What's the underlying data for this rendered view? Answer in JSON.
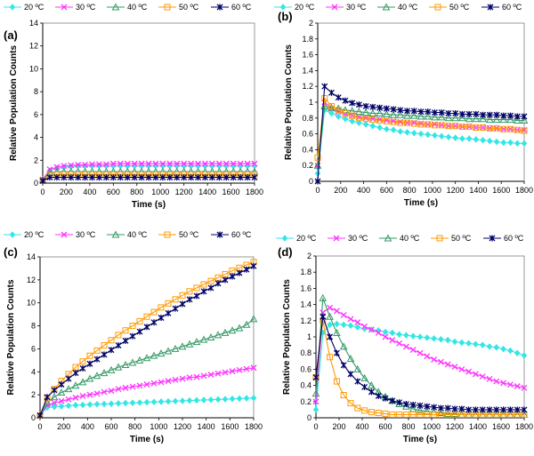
{
  "figure": {
    "series_names": [
      "20 ºC",
      "30 ºC",
      "40 ºC",
      "50 ºC",
      "60 ºC"
    ],
    "series_colors": [
      "#33e6e6",
      "#ff33ff",
      "#339966",
      "#ff9900",
      "#000066"
    ],
    "series_markers": [
      "diamond",
      "cross",
      "triangle",
      "square",
      "star"
    ]
  },
  "chart_data": [
    {
      "panel": "(a)",
      "type": "line",
      "xlabel": "Time (s)",
      "ylabel": "Relative Population Counts",
      "xlim": [
        0,
        1800
      ],
      "ylim": [
        0,
        14
      ],
      "xticks": [
        "0",
        "200",
        "400",
        "600",
        "800",
        "1000",
        "1200",
        "1400",
        "1600",
        "1800"
      ],
      "yticks": [
        "0",
        "2",
        "4",
        "6",
        "8",
        "10",
        "12",
        "14"
      ],
      "legend": "top",
      "x": [
        0,
        60,
        120,
        180,
        240,
        300,
        360,
        420,
        480,
        540,
        600,
        660,
        720,
        780,
        840,
        900,
        960,
        1020,
        1080,
        1140,
        1200,
        1260,
        1320,
        1380,
        1440,
        1500,
        1560,
        1620,
        1680,
        1740,
        1800
      ],
      "series": [
        {
          "name": "20 ºC",
          "values": [
            0.3,
            1.1,
            1.3,
            1.4,
            1.45,
            1.5,
            1.5,
            1.5,
            1.5,
            1.5,
            1.5,
            1.5,
            1.5,
            1.5,
            1.5,
            1.5,
            1.5,
            1.5,
            1.5,
            1.5,
            1.5,
            1.5,
            1.5,
            1.5,
            1.5,
            1.5,
            1.5,
            1.5,
            1.5,
            1.5,
            1.5
          ]
        },
        {
          "name": "30 ºC",
          "values": [
            0.3,
            1.2,
            1.4,
            1.5,
            1.55,
            1.6,
            1.6,
            1.65,
            1.65,
            1.65,
            1.7,
            1.7,
            1.7,
            1.7,
            1.7,
            1.7,
            1.7,
            1.7,
            1.7,
            1.7,
            1.7,
            1.7,
            1.7,
            1.7,
            1.7,
            1.7,
            1.7,
            1.7,
            1.7,
            1.7,
            1.7
          ]
        },
        {
          "name": "40 ºC",
          "values": [
            0.3,
            0.9,
            1.0,
            1.0,
            1.0,
            1.0,
            1.0,
            1.0,
            1.0,
            1.0,
            1.0,
            1.0,
            1.0,
            1.0,
            1.0,
            1.0,
            1.0,
            1.0,
            1.0,
            1.0,
            1.0,
            1.0,
            1.0,
            1.0,
            1.0,
            1.0,
            1.0,
            1.0,
            1.0,
            1.0,
            1.0
          ]
        },
        {
          "name": "50 ºC",
          "values": [
            0.2,
            0.7,
            0.75,
            0.75,
            0.75,
            0.75,
            0.75,
            0.75,
            0.75,
            0.75,
            0.75,
            0.75,
            0.75,
            0.75,
            0.75,
            0.75,
            0.75,
            0.75,
            0.75,
            0.75,
            0.75,
            0.75,
            0.75,
            0.75,
            0.75,
            0.75,
            0.75,
            0.75,
            0.75,
            0.75,
            0.75
          ]
        },
        {
          "name": "60 ºC",
          "values": [
            0.2,
            0.5,
            0.5,
            0.5,
            0.5,
            0.5,
            0.5,
            0.5,
            0.5,
            0.5,
            0.5,
            0.5,
            0.5,
            0.5,
            0.5,
            0.5,
            0.5,
            0.5,
            0.5,
            0.5,
            0.5,
            0.5,
            0.5,
            0.5,
            0.5,
            0.5,
            0.5,
            0.5,
            0.5,
            0.5,
            0.5
          ]
        }
      ]
    },
    {
      "panel": "(b)",
      "type": "line",
      "xlabel": "Time (s)",
      "ylabel": "Relative Population Counts",
      "xlim": [
        0,
        1800
      ],
      "ylim": [
        0,
        2
      ],
      "xticks": [
        "0",
        "200",
        "400",
        "600",
        "800",
        "1000",
        "1200",
        "1400",
        "1600",
        "1800"
      ],
      "yticks": [
        "0",
        "0.2",
        "0.4",
        "0.6",
        "0.8",
        "1",
        "1.2",
        "1.4",
        "1.6",
        "1.8",
        "2"
      ],
      "legend": "top",
      "x": [
        0,
        60,
        120,
        180,
        240,
        300,
        360,
        420,
        480,
        540,
        600,
        660,
        720,
        780,
        840,
        900,
        960,
        1020,
        1080,
        1140,
        1200,
        1260,
        1320,
        1380,
        1440,
        1500,
        1560,
        1620,
        1680,
        1740,
        1800
      ],
      "series": [
        {
          "name": "20 ºC",
          "values": [
            0.1,
            0.9,
            0.86,
            0.82,
            0.79,
            0.76,
            0.74,
            0.72,
            0.7,
            0.68,
            0.66,
            0.65,
            0.63,
            0.62,
            0.61,
            0.6,
            0.59,
            0.58,
            0.57,
            0.56,
            0.55,
            0.54,
            0.54,
            0.53,
            0.52,
            0.51,
            0.5,
            0.49,
            0.49,
            0.48,
            0.48
          ]
        },
        {
          "name": "30 ºC",
          "values": [
            0.2,
            1.0,
            0.92,
            0.88,
            0.85,
            0.83,
            0.81,
            0.8,
            0.79,
            0.78,
            0.77,
            0.76,
            0.75,
            0.74,
            0.74,
            0.73,
            0.72,
            0.72,
            0.71,
            0.7,
            0.7,
            0.69,
            0.69,
            0.68,
            0.68,
            0.67,
            0.67,
            0.66,
            0.66,
            0.65,
            0.65
          ]
        },
        {
          "name": "40 ºC",
          "values": [
            0.2,
            0.95,
            0.93,
            0.92,
            0.9,
            0.89,
            0.88,
            0.87,
            0.86,
            0.86,
            0.85,
            0.84,
            0.84,
            0.83,
            0.83,
            0.82,
            0.82,
            0.81,
            0.81,
            0.8,
            0.8,
            0.8,
            0.79,
            0.79,
            0.79,
            0.78,
            0.78,
            0.78,
            0.78,
            0.77,
            0.77
          ]
        },
        {
          "name": "50 ºC",
          "values": [
            0.3,
            1.05,
            0.95,
            0.9,
            0.86,
            0.83,
            0.8,
            0.79,
            0.78,
            0.77,
            0.76,
            0.75,
            0.74,
            0.74,
            0.73,
            0.72,
            0.72,
            0.71,
            0.71,
            0.7,
            0.7,
            0.69,
            0.69,
            0.68,
            0.68,
            0.67,
            0.67,
            0.66,
            0.66,
            0.65,
            0.64
          ]
        },
        {
          "name": "60 ºC",
          "values": [
            0.0,
            1.2,
            1.12,
            1.06,
            1.02,
            0.99,
            0.97,
            0.95,
            0.94,
            0.93,
            0.92,
            0.91,
            0.9,
            0.89,
            0.89,
            0.88,
            0.88,
            0.87,
            0.87,
            0.86,
            0.86,
            0.85,
            0.85,
            0.85,
            0.84,
            0.84,
            0.84,
            0.83,
            0.83,
            0.82,
            0.82
          ]
        }
      ]
    },
    {
      "panel": "(c)",
      "type": "line",
      "xlabel": "Time (s)",
      "ylabel": "Relative Population Counts",
      "xlim": [
        0,
        1800
      ],
      "ylim": [
        0,
        14
      ],
      "xticks": [
        "0",
        "200",
        "400",
        "600",
        "800",
        "1000",
        "1200",
        "1400",
        "1600",
        "1800"
      ],
      "yticks": [
        "0",
        "2",
        "4",
        "6",
        "8",
        "10",
        "12",
        "14"
      ],
      "legend": "top",
      "x": [
        0,
        60,
        120,
        180,
        240,
        300,
        360,
        420,
        480,
        540,
        600,
        660,
        720,
        780,
        840,
        900,
        960,
        1020,
        1080,
        1140,
        1200,
        1260,
        1320,
        1380,
        1440,
        1500,
        1560,
        1620,
        1680,
        1740,
        1800
      ],
      "series": [
        {
          "name": "20 ºC",
          "values": [
            0.2,
            0.9,
            0.95,
            1.0,
            1.05,
            1.1,
            1.12,
            1.15,
            1.18,
            1.2,
            1.22,
            1.25,
            1.28,
            1.3,
            1.32,
            1.35,
            1.38,
            1.4,
            1.42,
            1.45,
            1.47,
            1.5,
            1.52,
            1.55,
            1.57,
            1.6,
            1.62,
            1.65,
            1.67,
            1.7,
            1.72
          ]
        },
        {
          "name": "30 ºC",
          "values": [
            0.2,
            1.1,
            1.3,
            1.45,
            1.6,
            1.75,
            1.9,
            2.0,
            2.1,
            2.25,
            2.35,
            2.5,
            2.6,
            2.7,
            2.8,
            2.9,
            3.0,
            3.1,
            3.2,
            3.3,
            3.4,
            3.5,
            3.55,
            3.65,
            3.75,
            3.85,
            3.95,
            4.05,
            4.15,
            4.25,
            4.35
          ]
        },
        {
          "name": "40 ºC",
          "values": [
            0.2,
            1.3,
            1.8,
            2.2,
            2.5,
            2.8,
            3.1,
            3.4,
            3.65,
            3.9,
            4.15,
            4.4,
            4.6,
            4.8,
            5.0,
            5.2,
            5.4,
            5.6,
            5.8,
            6.0,
            6.2,
            6.4,
            6.6,
            6.8,
            7.0,
            7.2,
            7.4,
            7.6,
            7.8,
            8.1,
            8.6
          ]
        },
        {
          "name": "50 ºC",
          "values": [
            0.2,
            1.7,
            2.5,
            3.2,
            3.8,
            4.4,
            4.9,
            5.4,
            5.85,
            6.3,
            6.75,
            7.2,
            7.6,
            8.0,
            8.4,
            8.8,
            9.2,
            9.6,
            9.95,
            10.3,
            10.65,
            11.0,
            11.3,
            11.6,
            11.9,
            12.2,
            12.5,
            12.8,
            13.05,
            13.3,
            13.55
          ]
        },
        {
          "name": "60 ºC",
          "values": [
            0.2,
            1.8,
            2.4,
            2.9,
            3.4,
            3.9,
            4.3,
            4.7,
            5.1,
            5.5,
            5.9,
            6.3,
            6.7,
            7.1,
            7.5,
            7.9,
            8.3,
            8.7,
            9.1,
            9.5,
            9.9,
            10.3,
            10.6,
            11.0,
            11.3,
            11.7,
            12.0,
            12.3,
            12.6,
            12.9,
            13.2
          ]
        }
      ]
    },
    {
      "panel": "(d)",
      "type": "line",
      "xlabel": "Time (s)",
      "ylabel": "Relative Population Counts",
      "xlim": [
        0,
        1800
      ],
      "ylim": [
        0,
        2
      ],
      "xticks": [
        "0",
        "200",
        "400",
        "600",
        "800",
        "1000",
        "1200",
        "1400",
        "1600",
        "1800"
      ],
      "yticks": [
        "0",
        "0.2",
        "0.4",
        "0.6",
        "0.8",
        "1",
        "1.2",
        "1.4",
        "1.6",
        "1.8",
        "2"
      ],
      "legend": "top",
      "x": [
        0,
        60,
        120,
        180,
        240,
        300,
        360,
        420,
        480,
        540,
        600,
        660,
        720,
        780,
        840,
        900,
        960,
        1020,
        1080,
        1140,
        1200,
        1260,
        1320,
        1380,
        1440,
        1500,
        1560,
        1620,
        1680,
        1740,
        1800
      ],
      "series": [
        {
          "name": "20 ºC",
          "values": [
            0.1,
            1.05,
            1.15,
            1.16,
            1.15,
            1.14,
            1.12,
            1.1,
            1.09,
            1.08,
            1.06,
            1.05,
            1.03,
            1.02,
            1.01,
            1.0,
            0.99,
            0.98,
            0.97,
            0.96,
            0.94,
            0.93,
            0.92,
            0.91,
            0.9,
            0.88,
            0.87,
            0.85,
            0.83,
            0.8,
            0.77
          ]
        },
        {
          "name": "30 ºC",
          "values": [
            0.2,
            1.3,
            1.36,
            1.32,
            1.27,
            1.22,
            1.18,
            1.13,
            1.09,
            1.05,
            1.0,
            0.96,
            0.92,
            0.88,
            0.84,
            0.8,
            0.76,
            0.72,
            0.69,
            0.66,
            0.63,
            0.6,
            0.57,
            0.54,
            0.51,
            0.48,
            0.45,
            0.43,
            0.41,
            0.39,
            0.37
          ]
        },
        {
          "name": "40 ºC",
          "values": [
            0.3,
            1.48,
            1.25,
            1.05,
            0.88,
            0.73,
            0.6,
            0.49,
            0.4,
            0.32,
            0.26,
            0.21,
            0.17,
            0.14,
            0.11,
            0.09,
            0.08,
            0.07,
            0.06,
            0.05,
            0.05,
            0.04,
            0.04,
            0.04,
            0.04,
            0.04,
            0.04,
            0.04,
            0.04,
            0.04,
            0.04
          ]
        },
        {
          "name": "50 ºC",
          "values": [
            0.5,
            1.2,
            0.75,
            0.45,
            0.28,
            0.18,
            0.12,
            0.09,
            0.07,
            0.06,
            0.05,
            0.04,
            0.04,
            0.04,
            0.04,
            0.04,
            0.04,
            0.04,
            0.04,
            0.04,
            0.04,
            0.04,
            0.04,
            0.04,
            0.04,
            0.04,
            0.04,
            0.04,
            0.04,
            0.04,
            0.04
          ]
        },
        {
          "name": "60 ºC",
          "values": [
            0.5,
            1.25,
            1.0,
            0.8,
            0.65,
            0.54,
            0.45,
            0.38,
            0.32,
            0.27,
            0.24,
            0.21,
            0.19,
            0.17,
            0.16,
            0.15,
            0.14,
            0.13,
            0.12,
            0.12,
            0.11,
            0.11,
            0.1,
            0.1,
            0.1,
            0.1,
            0.1,
            0.1,
            0.1,
            0.1,
            0.1
          ]
        }
      ]
    }
  ]
}
